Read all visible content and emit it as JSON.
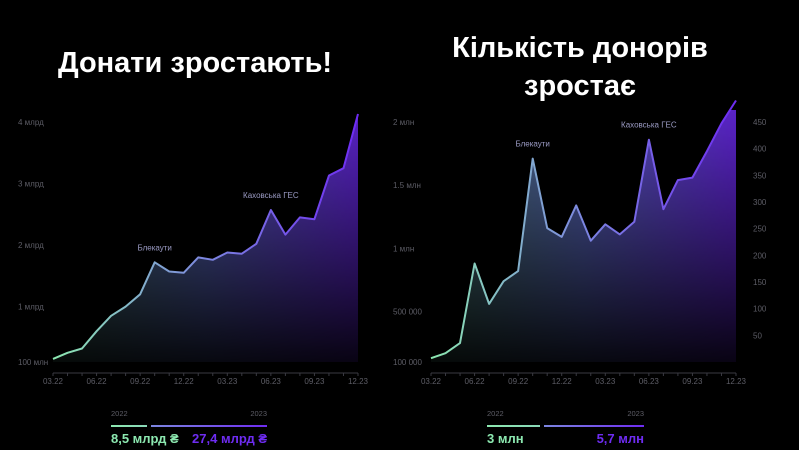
{
  "titles": {
    "left": "Донати зростають!",
    "right_line1": "Кількість донорів",
    "right_line2": "зростає"
  },
  "colors": {
    "green": "#8ce8b0",
    "purple": "#6e2cf2",
    "blue_mid": "#7c86e0",
    "axis": "#5d5d66",
    "background": "#000000"
  },
  "chart_data": [
    {
      "type": "area",
      "title": "Донати зростають!",
      "x": [
        "03.22",
        "04.22",
        "05.22",
        "06.22",
        "07.22",
        "08.22",
        "09.22",
        "10.22",
        "11.22",
        "12.22",
        "01.23",
        "02.23",
        "03.23",
        "04.23",
        "05.23",
        "06.23",
        "07.23",
        "08.23",
        "09.23",
        "10.23",
        "11.23",
        "12.23"
      ],
      "x_tick_labels": [
        "03.22",
        "06.22",
        "09.22",
        "12.22",
        "03.23",
        "06.23",
        "09.23",
        "12.23"
      ],
      "y_tick_labels": [
        "100 млн",
        "1 млрд",
        "2 млрд",
        "3 млрд",
        "4 млрд"
      ],
      "y_unit": "млрд",
      "ylim": [
        0.1,
        4.0
      ],
      "series": [
        {
          "values": [
            0.15,
            0.25,
            0.32,
            0.6,
            0.85,
            1.0,
            1.2,
            1.72,
            1.57,
            1.55,
            1.8,
            1.76,
            1.88,
            1.86,
            2.02,
            2.57,
            2.17,
            2.45,
            2.42,
            3.13,
            3.25,
            4.13
          ]
        }
      ],
      "annotations": [
        {
          "text": "Блекаути",
          "x": "10.22"
        },
        {
          "text": "Каховська ГЕС",
          "x": "06.23"
        }
      ],
      "legend": {
        "year_a": "2022",
        "value_a": "8,5 млрд ₴",
        "year_b": "2023",
        "value_b": "27,4 млрд ₴"
      }
    },
    {
      "type": "area",
      "title": "Кількість донорів зростає",
      "x": [
        "03.22",
        "04.22",
        "05.22",
        "06.22",
        "07.22",
        "08.22",
        "09.22",
        "10.22",
        "11.22",
        "12.22",
        "01.23",
        "02.23",
        "03.23",
        "04.23",
        "05.23",
        "06.23",
        "07.23",
        "08.23",
        "09.23",
        "10.23",
        "11.23",
        "12.23"
      ],
      "x_tick_labels": [
        "03.22",
        "06.22",
        "09.22",
        "12.22",
        "03.23",
        "06.23",
        "09.23",
        "12.23"
      ],
      "y_tick_labels_left": [
        "100 000",
        "500 000",
        "1 млн",
        "1.5 млн",
        "2 млн"
      ],
      "y_tick_labels_right": [
        "50",
        "100",
        "150",
        "200",
        "250",
        "300",
        "350",
        "400",
        "450"
      ],
      "ylim": [
        100000,
        2000000
      ],
      "series": [
        {
          "values": [
            130000,
            170000,
            250000,
            880000,
            560000,
            740000,
            820000,
            1710000,
            1160000,
            1090000,
            1340000,
            1060000,
            1190000,
            1110000,
            1210000,
            1860000,
            1310000,
            1540000,
            1560000,
            1770000,
            1990000,
            2170000
          ]
        }
      ],
      "annotations": [
        {
          "text": "Блекаути",
          "x": "10.22"
        },
        {
          "text": "Каховська ГЕС",
          "x": "06.23"
        }
      ],
      "legend": {
        "year_a": "2022",
        "value_a": "3 млн",
        "year_b": "2023",
        "value_b": "5,7 млн"
      }
    }
  ]
}
